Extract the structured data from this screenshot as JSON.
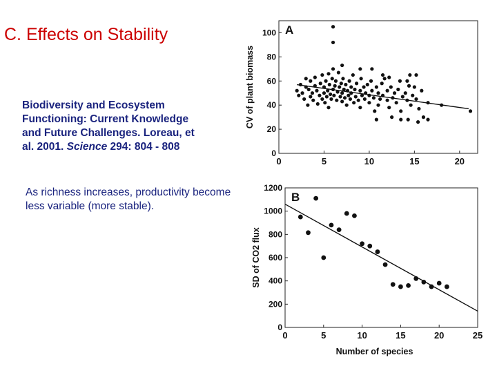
{
  "slide": {
    "title": "C. Effects on Stability",
    "citation": {
      "line1": "Biodiversity and Ecosystem",
      "line2": "Functioning: Current Knowledge",
      "line3": "and Future Challenges.  Loreau, et",
      "line4_prefix": "al. 2001. ",
      "journal": "Science",
      "line4_suffix": " 294: 804 - 808"
    },
    "note": "As richness increases, productivity become less variable (more stable)."
  },
  "chart_data": [
    {
      "type": "scatter",
      "panel_label": "A",
      "xlabel": "",
      "ylabel": "CV of plant biomass",
      "xlim": [
        0,
        22
      ],
      "ylim": [
        0,
        110
      ],
      "xticks": [
        "0",
        "5",
        "10",
        "15",
        "20"
      ],
      "yticks": [
        "0",
        "20",
        "40",
        "60",
        "80",
        "100"
      ],
      "xtick_values": [
        0,
        5,
        10,
        15,
        20
      ],
      "ytick_values": [
        0,
        20,
        40,
        60,
        80,
        100
      ],
      "points": [
        [
          2,
          52
        ],
        [
          2.2,
          48
        ],
        [
          2.4,
          57
        ],
        [
          2.6,
          50
        ],
        [
          2.8,
          45
        ],
        [
          3,
          55
        ],
        [
          3,
          62
        ],
        [
          3.2,
          40
        ],
        [
          3.3,
          53
        ],
        [
          3.5,
          60
        ],
        [
          3.5,
          47
        ],
        [
          3.7,
          50
        ],
        [
          3.8,
          44
        ],
        [
          4,
          56
        ],
        [
          4,
          63
        ],
        [
          4.2,
          52
        ],
        [
          4.3,
          41
        ],
        [
          4.5,
          48
        ],
        [
          4.6,
          58
        ],
        [
          4.8,
          65
        ],
        [
          4.8,
          45
        ],
        [
          5,
          50
        ],
        [
          5,
          55
        ],
        [
          5.1,
          42
        ],
        [
          5.2,
          60
        ],
        [
          5.3,
          47
        ],
        [
          5.4,
          52
        ],
        [
          5.5,
          66
        ],
        [
          5.5,
          38
        ],
        [
          5.6,
          57
        ],
        [
          5.7,
          49
        ],
        [
          5.8,
          45
        ],
        [
          5.9,
          62
        ],
        [
          6,
          53
        ],
        [
          6,
          70
        ],
        [
          6.1,
          48
        ],
        [
          6.2,
          56
        ],
        [
          6.3,
          60
        ],
        [
          6.4,
          44
        ],
        [
          6.5,
          51
        ],
        [
          6.6,
          67
        ],
        [
          6.7,
          55
        ],
        [
          6.8,
          47
        ],
        [
          6.9,
          58
        ],
        [
          7,
          50
        ],
        [
          7,
          43
        ],
        [
          7.1,
          62
        ],
        [
          7.2,
          53
        ],
        [
          7.3,
          46
        ],
        [
          7.4,
          57
        ],
        [
          7.5,
          40
        ],
        [
          7.6,
          52
        ],
        [
          7.7,
          48
        ],
        [
          7.8,
          60
        ],
        [
          7.9,
          45
        ],
        [
          8,
          55
        ],
        [
          8,
          50
        ],
        [
          8.2,
          65
        ],
        [
          8.3,
          42
        ],
        [
          8.4,
          53
        ],
        [
          8.5,
          47
        ],
        [
          8.6,
          58
        ],
        [
          8.8,
          44
        ],
        [
          9,
          52
        ],
        [
          9,
          38
        ],
        [
          9.1,
          62
        ],
        [
          9.2,
          48
        ],
        [
          9.4,
          55
        ],
        [
          9.5,
          45
        ],
        [
          9.6,
          50
        ],
        [
          9.8,
          57
        ],
        [
          10,
          42
        ],
        [
          10,
          48
        ],
        [
          10.2,
          60
        ],
        [
          10.3,
          52
        ],
        [
          10.5,
          46
        ],
        [
          10.6,
          35
        ],
        [
          10.8,
          55
        ],
        [
          11,
          50
        ],
        [
          11,
          40
        ],
        [
          11.2,
          45
        ],
        [
          11.4,
          58
        ],
        [
          11.5,
          48
        ],
        [
          11.7,
          62
        ],
        [
          12,
          52
        ],
        [
          12,
          44
        ],
        [
          12.2,
          38
        ],
        [
          12.4,
          55
        ],
        [
          12.6,
          46
        ],
        [
          12.8,
          50
        ],
        [
          13,
          42
        ],
        [
          13.2,
          53
        ],
        [
          13.4,
          60
        ],
        [
          13.5,
          35
        ],
        [
          13.7,
          47
        ],
        [
          14,
          50
        ],
        [
          14.2,
          44
        ],
        [
          14.4,
          56
        ],
        [
          14.6,
          40
        ],
        [
          14.8,
          48
        ],
        [
          15,
          55
        ],
        [
          15.2,
          45
        ],
        [
          15.5,
          37
        ],
        [
          15.8,
          52
        ],
        [
          16,
          30
        ],
        [
          16.5,
          42
        ],
        [
          18,
          40
        ],
        [
          21.2,
          35
        ],
        [
          6,
          105
        ],
        [
          6,
          92
        ],
        [
          7,
          73
        ],
        [
          9,
          70
        ],
        [
          10.3,
          70
        ],
        [
          11.5,
          65
        ],
        [
          12.2,
          63
        ],
        [
          14.2,
          60
        ],
        [
          14.5,
          65
        ],
        [
          15.2,
          65
        ],
        [
          12.5,
          30
        ],
        [
          13.5,
          28
        ],
        [
          10.8,
          28
        ],
        [
          14.3,
          28
        ],
        [
          15.4,
          26
        ],
        [
          16.5,
          28
        ]
      ],
      "trend": [
        [
          2,
          57
        ],
        [
          21,
          37
        ]
      ]
    },
    {
      "type": "scatter",
      "panel_label": "B",
      "xlabel": "Number of species",
      "ylabel": "SD of CO2 flux",
      "xlim": [
        0,
        25
      ],
      "ylim": [
        0,
        1200
      ],
      "xticks": [
        "0",
        "5",
        "10",
        "15",
        "20",
        "25"
      ],
      "yticks": [
        "0",
        "200",
        "400",
        "600",
        "800",
        "1000",
        "1200"
      ],
      "xtick_values": [
        0,
        5,
        10,
        15,
        20,
        25
      ],
      "ytick_values": [
        0,
        200,
        400,
        600,
        800,
        1000,
        1200
      ],
      "points": [
        [
          2,
          950
        ],
        [
          3,
          815
        ],
        [
          4,
          1110
        ],
        [
          5,
          600
        ],
        [
          6,
          880
        ],
        [
          7,
          840
        ],
        [
          8,
          980
        ],
        [
          9,
          960
        ],
        [
          10,
          720
        ],
        [
          11,
          700
        ],
        [
          12,
          650
        ],
        [
          13,
          540
        ],
        [
          14,
          370
        ],
        [
          15,
          350
        ],
        [
          16,
          360
        ],
        [
          17,
          420
        ],
        [
          18,
          390
        ],
        [
          19,
          350
        ],
        [
          20,
          380
        ],
        [
          21,
          350
        ]
      ],
      "trend": [
        [
          0,
          1060
        ],
        [
          25,
          140
        ]
      ]
    }
  ]
}
